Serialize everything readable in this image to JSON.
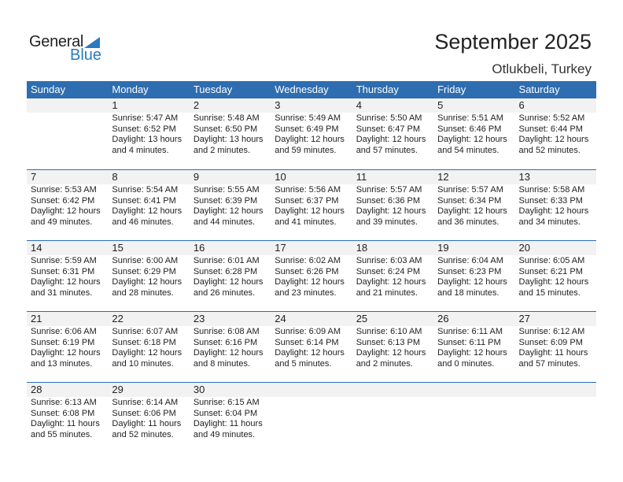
{
  "logo": {
    "word1": "General",
    "word2": "Blue"
  },
  "header": {
    "title": "September 2025",
    "location": "Otlukbeli, Turkey"
  },
  "colors": {
    "header_bg": "#2e6db0",
    "day_band": "#f2f2f2",
    "brand_blue": "#2a7ac0"
  },
  "weekdays": [
    "Sunday",
    "Monday",
    "Tuesday",
    "Wednesday",
    "Thursday",
    "Friday",
    "Saturday"
  ],
  "weeks": [
    [
      null,
      {
        "day": "1",
        "sunrise": "Sunrise: 5:47 AM",
        "sunset": "Sunset: 6:52 PM",
        "daylight1": "Daylight: 13 hours",
        "daylight2": "and 4 minutes."
      },
      {
        "day": "2",
        "sunrise": "Sunrise: 5:48 AM",
        "sunset": "Sunset: 6:50 PM",
        "daylight1": "Daylight: 13 hours",
        "daylight2": "and 2 minutes."
      },
      {
        "day": "3",
        "sunrise": "Sunrise: 5:49 AM",
        "sunset": "Sunset: 6:49 PM",
        "daylight1": "Daylight: 12 hours",
        "daylight2": "and 59 minutes."
      },
      {
        "day": "4",
        "sunrise": "Sunrise: 5:50 AM",
        "sunset": "Sunset: 6:47 PM",
        "daylight1": "Daylight: 12 hours",
        "daylight2": "and 57 minutes."
      },
      {
        "day": "5",
        "sunrise": "Sunrise: 5:51 AM",
        "sunset": "Sunset: 6:46 PM",
        "daylight1": "Daylight: 12 hours",
        "daylight2": "and 54 minutes."
      },
      {
        "day": "6",
        "sunrise": "Sunrise: 5:52 AM",
        "sunset": "Sunset: 6:44 PM",
        "daylight1": "Daylight: 12 hours",
        "daylight2": "and 52 minutes."
      }
    ],
    [
      {
        "day": "7",
        "sunrise": "Sunrise: 5:53 AM",
        "sunset": "Sunset: 6:42 PM",
        "daylight1": "Daylight: 12 hours",
        "daylight2": "and 49 minutes."
      },
      {
        "day": "8",
        "sunrise": "Sunrise: 5:54 AM",
        "sunset": "Sunset: 6:41 PM",
        "daylight1": "Daylight: 12 hours",
        "daylight2": "and 46 minutes."
      },
      {
        "day": "9",
        "sunrise": "Sunrise: 5:55 AM",
        "sunset": "Sunset: 6:39 PM",
        "daylight1": "Daylight: 12 hours",
        "daylight2": "and 44 minutes."
      },
      {
        "day": "10",
        "sunrise": "Sunrise: 5:56 AM",
        "sunset": "Sunset: 6:37 PM",
        "daylight1": "Daylight: 12 hours",
        "daylight2": "and 41 minutes."
      },
      {
        "day": "11",
        "sunrise": "Sunrise: 5:57 AM",
        "sunset": "Sunset: 6:36 PM",
        "daylight1": "Daylight: 12 hours",
        "daylight2": "and 39 minutes."
      },
      {
        "day": "12",
        "sunrise": "Sunrise: 5:57 AM",
        "sunset": "Sunset: 6:34 PM",
        "daylight1": "Daylight: 12 hours",
        "daylight2": "and 36 minutes."
      },
      {
        "day": "13",
        "sunrise": "Sunrise: 5:58 AM",
        "sunset": "Sunset: 6:33 PM",
        "daylight1": "Daylight: 12 hours",
        "daylight2": "and 34 minutes."
      }
    ],
    [
      {
        "day": "14",
        "sunrise": "Sunrise: 5:59 AM",
        "sunset": "Sunset: 6:31 PM",
        "daylight1": "Daylight: 12 hours",
        "daylight2": "and 31 minutes."
      },
      {
        "day": "15",
        "sunrise": "Sunrise: 6:00 AM",
        "sunset": "Sunset: 6:29 PM",
        "daylight1": "Daylight: 12 hours",
        "daylight2": "and 28 minutes."
      },
      {
        "day": "16",
        "sunrise": "Sunrise: 6:01 AM",
        "sunset": "Sunset: 6:28 PM",
        "daylight1": "Daylight: 12 hours",
        "daylight2": "and 26 minutes."
      },
      {
        "day": "17",
        "sunrise": "Sunrise: 6:02 AM",
        "sunset": "Sunset: 6:26 PM",
        "daylight1": "Daylight: 12 hours",
        "daylight2": "and 23 minutes."
      },
      {
        "day": "18",
        "sunrise": "Sunrise: 6:03 AM",
        "sunset": "Sunset: 6:24 PM",
        "daylight1": "Daylight: 12 hours",
        "daylight2": "and 21 minutes."
      },
      {
        "day": "19",
        "sunrise": "Sunrise: 6:04 AM",
        "sunset": "Sunset: 6:23 PM",
        "daylight1": "Daylight: 12 hours",
        "daylight2": "and 18 minutes."
      },
      {
        "day": "20",
        "sunrise": "Sunrise: 6:05 AM",
        "sunset": "Sunset: 6:21 PM",
        "daylight1": "Daylight: 12 hours",
        "daylight2": "and 15 minutes."
      }
    ],
    [
      {
        "day": "21",
        "sunrise": "Sunrise: 6:06 AM",
        "sunset": "Sunset: 6:19 PM",
        "daylight1": "Daylight: 12 hours",
        "daylight2": "and 13 minutes."
      },
      {
        "day": "22",
        "sunrise": "Sunrise: 6:07 AM",
        "sunset": "Sunset: 6:18 PM",
        "daylight1": "Daylight: 12 hours",
        "daylight2": "and 10 minutes."
      },
      {
        "day": "23",
        "sunrise": "Sunrise: 6:08 AM",
        "sunset": "Sunset: 6:16 PM",
        "daylight1": "Daylight: 12 hours",
        "daylight2": "and 8 minutes."
      },
      {
        "day": "24",
        "sunrise": "Sunrise: 6:09 AM",
        "sunset": "Sunset: 6:14 PM",
        "daylight1": "Daylight: 12 hours",
        "daylight2": "and 5 minutes."
      },
      {
        "day": "25",
        "sunrise": "Sunrise: 6:10 AM",
        "sunset": "Sunset: 6:13 PM",
        "daylight1": "Daylight: 12 hours",
        "daylight2": "and 2 minutes."
      },
      {
        "day": "26",
        "sunrise": "Sunrise: 6:11 AM",
        "sunset": "Sunset: 6:11 PM",
        "daylight1": "Daylight: 12 hours",
        "daylight2": "and 0 minutes."
      },
      {
        "day": "27",
        "sunrise": "Sunrise: 6:12 AM",
        "sunset": "Sunset: 6:09 PM",
        "daylight1": "Daylight: 11 hours",
        "daylight2": "and 57 minutes."
      }
    ],
    [
      {
        "day": "28",
        "sunrise": "Sunrise: 6:13 AM",
        "sunset": "Sunset: 6:08 PM",
        "daylight1": "Daylight: 11 hours",
        "daylight2": "and 55 minutes."
      },
      {
        "day": "29",
        "sunrise": "Sunrise: 6:14 AM",
        "sunset": "Sunset: 6:06 PM",
        "daylight1": "Daylight: 11 hours",
        "daylight2": "and 52 minutes."
      },
      {
        "day": "30",
        "sunrise": "Sunrise: 6:15 AM",
        "sunset": "Sunset: 6:04 PM",
        "daylight1": "Daylight: 11 hours",
        "daylight2": "and 49 minutes."
      },
      null,
      null,
      null,
      null
    ]
  ]
}
